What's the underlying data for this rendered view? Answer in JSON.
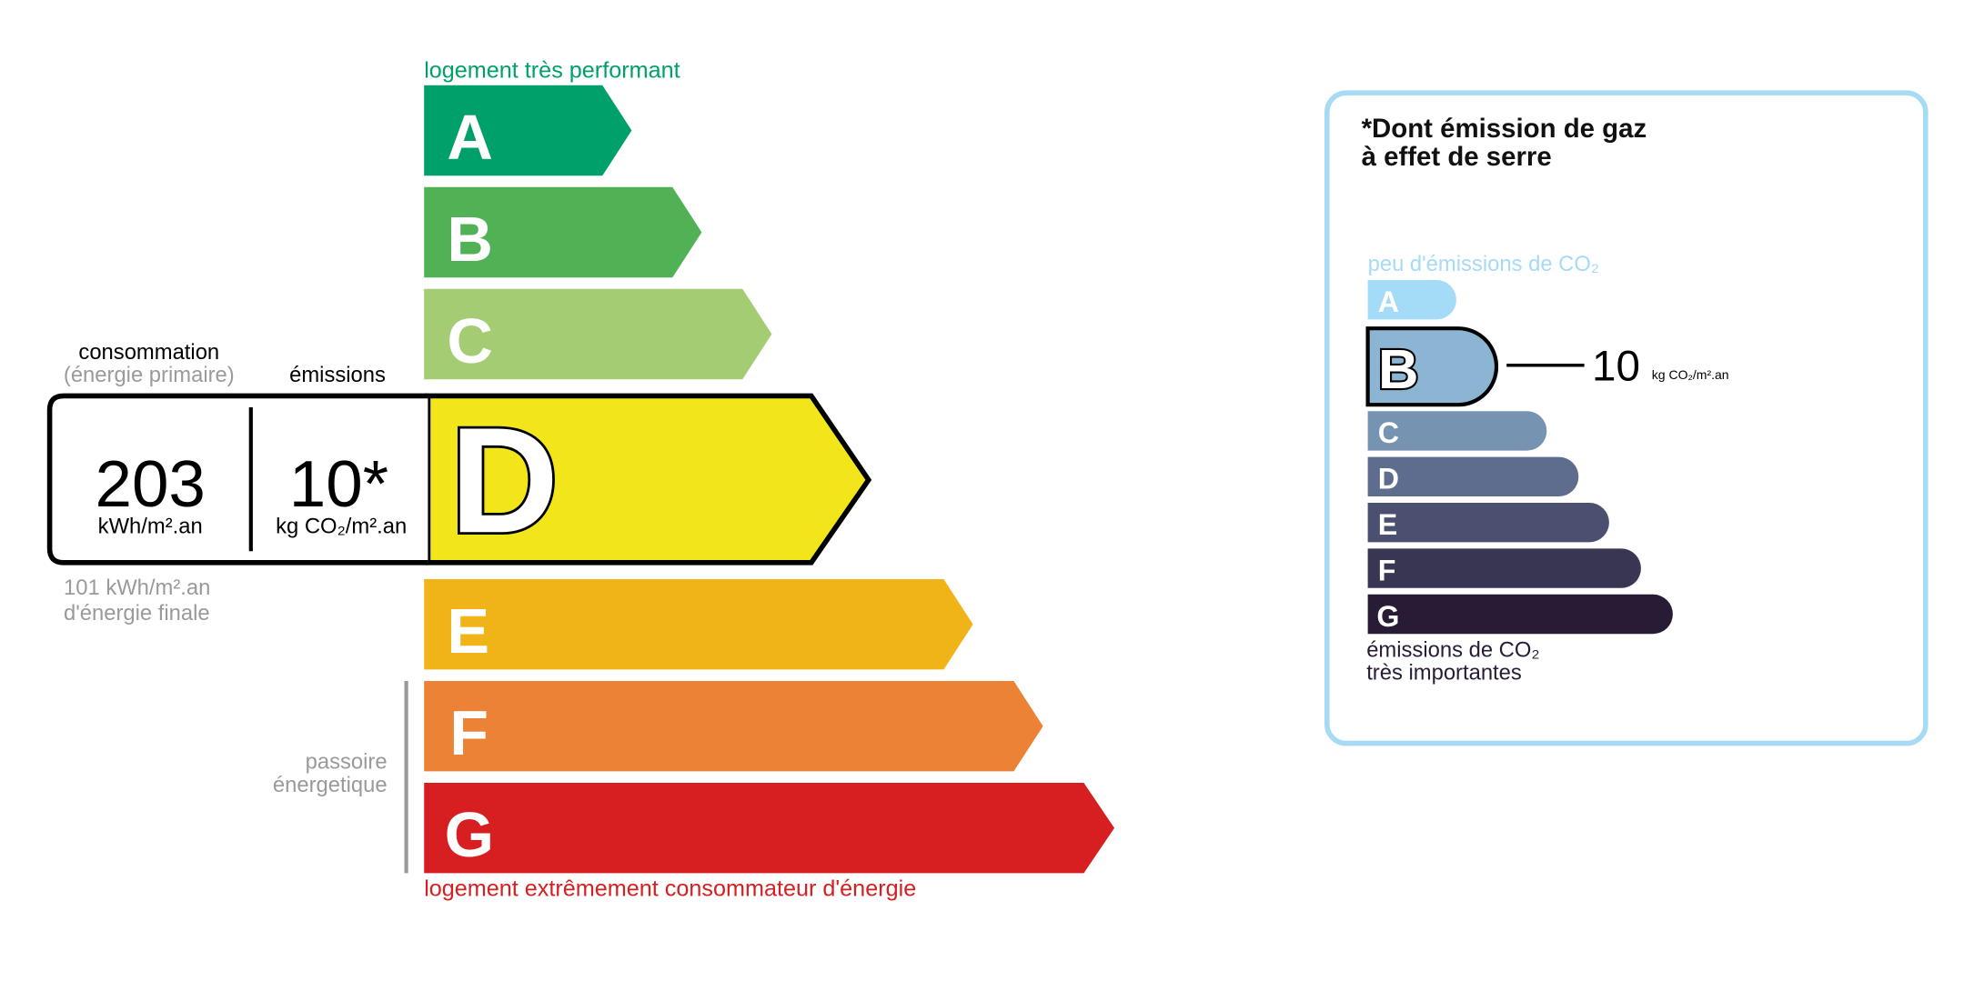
{
  "energy": {
    "top_label": "logement très performant",
    "bottom_label": "logement extrêmement consommateur d'énergie",
    "classes": [
      {
        "letter": "A",
        "color": "#00a06a"
      },
      {
        "letter": "B",
        "color": "#51b155"
      },
      {
        "letter": "C",
        "color": "#a4cc73"
      },
      {
        "letter": "D",
        "color": "#f2e61b"
      },
      {
        "letter": "E",
        "color": "#f0b418"
      },
      {
        "letter": "F",
        "color": "#eb8235"
      },
      {
        "letter": "G",
        "color": "#d71e20"
      }
    ],
    "current_class": "D",
    "consumption_label": "consommation",
    "consumption_sublabel": "(énergie primaire)",
    "emissions_label": "émissions",
    "consumption_value": "203",
    "consumption_unit": "kWh/m².an",
    "emissions_value": "10*",
    "emissions_unit": "kg CO₂/m².an",
    "final_energy_value": "101 kWh/m².an",
    "final_energy_label": "d'énergie finale",
    "passoire_line1": "passoire",
    "passoire_line2": "énergetique"
  },
  "ghg": {
    "title_line1": "*Dont émission de gaz",
    "title_line2": "à effet de serre",
    "top_label": "peu d'émissions de CO₂",
    "bottom_label_line1": "émissions de CO₂",
    "bottom_label_line2": "très importantes",
    "classes": [
      {
        "letter": "A",
        "color": "#a4dbf6"
      },
      {
        "letter": "B",
        "color": "#8cb4d3"
      },
      {
        "letter": "C",
        "color": "#7693b1"
      },
      {
        "letter": "D",
        "color": "#5e6c8e"
      },
      {
        "letter": "E",
        "color": "#4b5070"
      },
      {
        "letter": "F",
        "color": "#393654"
      },
      {
        "letter": "G",
        "color": "#281b35"
      }
    ],
    "current_class": "B",
    "value": "10",
    "unit": "kg CO₂/m².an",
    "border_color": "#a6daf5"
  }
}
